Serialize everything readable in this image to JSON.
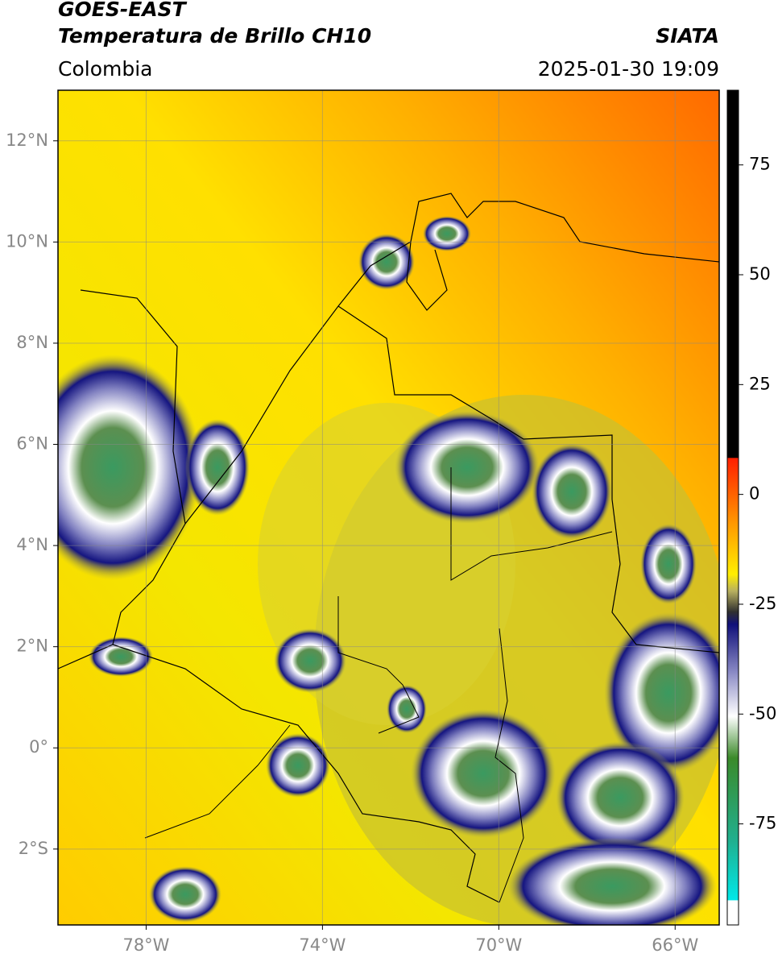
{
  "chart_data": {
    "type": "map",
    "title": "GOES-EAST",
    "subtitle": "Temperatura de Brillo CH10",
    "source": "SIATA",
    "region": "Colombia",
    "datetime": "2025-01-30 19:09",
    "xlim": [
      -80,
      -65
    ],
    "ylim": [
      -3.5,
      13
    ],
    "xticks": [
      {
        "value": -78,
        "label": "78°W"
      },
      {
        "value": -74,
        "label": "74°W"
      },
      {
        "value": -70,
        "label": "70°W"
      },
      {
        "value": -66,
        "label": "66°W"
      }
    ],
    "yticks": [
      {
        "value": 12,
        "label": "12°N"
      },
      {
        "value": 10,
        "label": "10°N"
      },
      {
        "value": 8,
        "label": "8°N"
      },
      {
        "value": 6,
        "label": "6°N"
      },
      {
        "value": 4,
        "label": "4°N"
      },
      {
        "value": 2,
        "label": "2°N"
      },
      {
        "value": 0,
        "label": "0°"
      },
      {
        "value": -2,
        "label": "2°S"
      }
    ],
    "grid": true,
    "colorbar": {
      "lim": [
        -98,
        92
      ],
      "ticks": [
        75,
        50,
        25,
        0,
        -25,
        -50,
        -75
      ]
    }
  }
}
